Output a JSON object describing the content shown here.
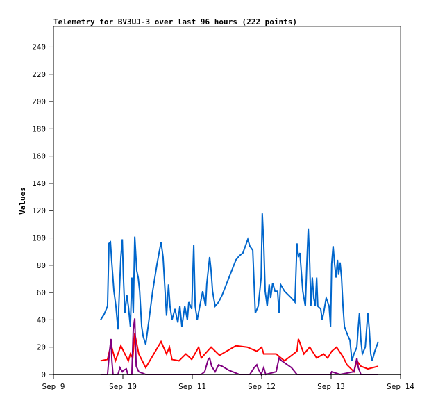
{
  "chart_data": {
    "type": "line",
    "title": "Telemetry for BV3UJ-3 over last 96 hours (222 points)",
    "xlabel": "",
    "ylabel": "Values",
    "x_unit": "hours since Sep 9 00:00",
    "xlim": [
      0,
      120
    ],
    "ylim": [
      0,
      255
    ],
    "grid": false,
    "x_ticks": [
      {
        "label": "Sep 9",
        "hours": 0
      },
      {
        "label": "Sep 10",
        "hours": 24
      },
      {
        "label": "Sep 11",
        "hours": 48
      },
      {
        "label": "Sep 12",
        "hours": 72
      },
      {
        "label": "Sep 13",
        "hours": 96
      },
      {
        "label": "Sep 14",
        "hours": 120
      }
    ],
    "y_ticks": [
      "0",
      "20",
      "40",
      "60",
      "80",
      "100",
      "120",
      "140",
      "160",
      "180",
      "200",
      "220",
      "240"
    ],
    "series": [
      {
        "name": "blue",
        "color": "#0066cc",
        "points": [
          [
            16.3,
            40
          ],
          [
            17.5,
            44
          ],
          [
            18.7,
            50
          ],
          [
            19.2,
            96
          ],
          [
            19.7,
            97
          ],
          [
            20.2,
            81
          ],
          [
            20.9,
            61
          ],
          [
            21.6,
            50
          ],
          [
            22.3,
            33
          ],
          [
            22.8,
            61
          ],
          [
            23.3,
            86
          ],
          [
            23.8,
            99
          ],
          [
            24.2,
            71
          ],
          [
            24.7,
            45
          ],
          [
            25.4,
            58
          ],
          [
            25.9,
            50
          ],
          [
            26.6,
            35
          ],
          [
            27.1,
            71
          ],
          [
            27.6,
            45
          ],
          [
            28.1,
            101
          ],
          [
            28.8,
            76
          ],
          [
            29.3,
            71
          ],
          [
            29.8,
            61
          ],
          [
            30.5,
            35
          ],
          [
            31.0,
            28
          ],
          [
            31.9,
            22
          ],
          [
            32.9,
            38
          ],
          [
            34.3,
            61
          ],
          [
            35.8,
            81
          ],
          [
            37.2,
            97
          ],
          [
            37.9,
            86
          ],
          [
            38.6,
            61
          ],
          [
            39.1,
            43
          ],
          [
            39.8,
            66
          ],
          [
            40.3,
            50
          ],
          [
            41.0,
            40
          ],
          [
            42.0,
            48
          ],
          [
            43.0,
            38
          ],
          [
            43.7,
            50
          ],
          [
            44.4,
            35
          ],
          [
            45.4,
            50
          ],
          [
            46.3,
            40
          ],
          [
            46.8,
            53
          ],
          [
            47.8,
            48
          ],
          [
            48.5,
            95
          ],
          [
            49.0,
            50
          ],
          [
            49.7,
            40
          ],
          [
            50.6,
            50
          ],
          [
            51.6,
            61
          ],
          [
            52.6,
            50
          ],
          [
            53.0,
            66
          ],
          [
            54.0,
            86
          ],
          [
            54.5,
            76
          ],
          [
            55.0,
            61
          ],
          [
            55.9,
            50
          ],
          [
            57.1,
            53
          ],
          [
            58.3,
            58
          ],
          [
            60.7,
            71
          ],
          [
            63.1,
            84
          ],
          [
            64.3,
            87
          ],
          [
            65.5,
            89
          ],
          [
            66.7,
            96
          ],
          [
            67.2,
            99
          ],
          [
            67.9,
            94
          ],
          [
            68.9,
            91
          ],
          [
            69.8,
            45
          ],
          [
            70.8,
            50
          ],
          [
            71.8,
            71
          ],
          [
            72.2,
            118
          ],
          [
            72.7,
            96
          ],
          [
            73.2,
            61
          ],
          [
            73.9,
            50
          ],
          [
            74.6,
            66
          ],
          [
            75.1,
            56
          ],
          [
            75.8,
            67
          ],
          [
            76.6,
            61
          ],
          [
            77.5,
            61
          ],
          [
            78.0,
            45
          ],
          [
            78.5,
            66
          ],
          [
            79.9,
            61
          ],
          [
            82.3,
            56
          ],
          [
            83.5,
            53
          ],
          [
            84.2,
            96
          ],
          [
            84.7,
            86
          ],
          [
            85.2,
            89
          ],
          [
            86.2,
            61
          ],
          [
            87.1,
            50
          ],
          [
            87.6,
            81
          ],
          [
            88.1,
            107
          ],
          [
            88.6,
            81
          ],
          [
            89.0,
            50
          ],
          [
            89.5,
            71
          ],
          [
            90.0,
            56
          ],
          [
            90.5,
            50
          ],
          [
            91.0,
            71
          ],
          [
            91.4,
            50
          ],
          [
            92.4,
            48
          ],
          [
            92.9,
            40
          ],
          [
            93.4,
            45
          ],
          [
            94.3,
            56
          ],
          [
            95.3,
            50
          ],
          [
            95.8,
            35
          ],
          [
            96.2,
            81
          ],
          [
            96.7,
            94
          ],
          [
            97.2,
            81
          ],
          [
            97.7,
            71
          ],
          [
            98.2,
            84
          ],
          [
            98.6,
            73
          ],
          [
            99.1,
            82
          ],
          [
            99.6,
            71
          ],
          [
            100.1,
            50
          ],
          [
            100.6,
            35
          ],
          [
            101.5,
            30
          ],
          [
            102.5,
            25
          ],
          [
            103.2,
            10
          ],
          [
            103.9,
            15
          ],
          [
            104.9,
            20
          ],
          [
            105.4,
            35
          ],
          [
            105.8,
            45
          ],
          [
            106.3,
            25
          ],
          [
            106.8,
            15
          ],
          [
            107.8,
            20
          ],
          [
            108.7,
            45
          ],
          [
            109.2,
            33
          ],
          [
            109.7,
            15
          ],
          [
            110.2,
            10
          ],
          [
            111.1,
            17
          ],
          [
            112.3,
            24
          ]
        ]
      },
      {
        "name": "red",
        "color": "#ff0000",
        "points": [
          [
            16.3,
            10
          ],
          [
            18.7,
            11
          ],
          [
            19.9,
            22
          ],
          [
            21.4,
            10
          ],
          [
            22.3,
            15
          ],
          [
            23.3,
            21
          ],
          [
            24.7,
            15
          ],
          [
            25.9,
            10
          ],
          [
            26.6,
            15
          ],
          [
            27.4,
            12
          ],
          [
            28.1,
            30
          ],
          [
            29.5,
            15
          ],
          [
            31.9,
            5
          ],
          [
            37.2,
            24
          ],
          [
            39.1,
            15
          ],
          [
            40.1,
            20
          ],
          [
            41.0,
            11
          ],
          [
            43.4,
            10
          ],
          [
            45.8,
            15
          ],
          [
            47.8,
            11
          ],
          [
            50.2,
            20
          ],
          [
            51.1,
            12
          ],
          [
            54.5,
            20
          ],
          [
            57.4,
            14
          ],
          [
            63.1,
            21
          ],
          [
            67.0,
            20
          ],
          [
            70.3,
            17
          ],
          [
            72.0,
            20
          ],
          [
            72.7,
            15
          ],
          [
            77.0,
            15
          ],
          [
            79.9,
            10
          ],
          [
            84.2,
            17
          ],
          [
            84.7,
            26
          ],
          [
            86.6,
            15
          ],
          [
            88.6,
            20
          ],
          [
            91.0,
            12
          ],
          [
            93.4,
            15
          ],
          [
            94.8,
            12
          ],
          [
            96.2,
            17
          ],
          [
            97.9,
            20
          ],
          [
            100.1,
            13
          ],
          [
            101.5,
            7
          ],
          [
            103.9,
            2
          ],
          [
            104.9,
            10
          ],
          [
            106.3,
            6
          ],
          [
            108.7,
            4
          ],
          [
            112.3,
            6
          ]
        ]
      },
      {
        "name": "purple",
        "color": "#800080",
        "points": [
          [
            16.3,
            0
          ],
          [
            18.7,
            0
          ],
          [
            19.4,
            17
          ],
          [
            19.9,
            26
          ],
          [
            20.2,
            10
          ],
          [
            20.6,
            0
          ],
          [
            22.3,
            0
          ],
          [
            23.0,
            5
          ],
          [
            23.8,
            2
          ],
          [
            24.2,
            3
          ],
          [
            25.2,
            4
          ],
          [
            25.7,
            0
          ],
          [
            27.1,
            0
          ],
          [
            27.6,
            33
          ],
          [
            28.1,
            41
          ],
          [
            28.6,
            6
          ],
          [
            29.5,
            2
          ],
          [
            31.9,
            0
          ],
          [
            51.1,
            0
          ],
          [
            52.3,
            2
          ],
          [
            53.5,
            11
          ],
          [
            54.0,
            12
          ],
          [
            54.7,
            6
          ],
          [
            55.9,
            2
          ],
          [
            57.1,
            7
          ],
          [
            58.3,
            6
          ],
          [
            60.7,
            3
          ],
          [
            64.3,
            0
          ],
          [
            67.9,
            0
          ],
          [
            69.4,
            5
          ],
          [
            70.3,
            7
          ],
          [
            70.8,
            4
          ],
          [
            71.8,
            0
          ],
          [
            72.7,
            5
          ],
          [
            73.4,
            0
          ],
          [
            77.0,
            2
          ],
          [
            78.0,
            12
          ],
          [
            78.9,
            10
          ],
          [
            82.3,
            5
          ],
          [
            84.2,
            0
          ],
          [
            95.8,
            0
          ],
          [
            96.2,
            2
          ],
          [
            99.1,
            0
          ],
          [
            103.9,
            2
          ],
          [
            104.9,
            12
          ],
          [
            105.4,
            5
          ],
          [
            106.3,
            0
          ],
          [
            112.3,
            0
          ]
        ]
      }
    ]
  }
}
